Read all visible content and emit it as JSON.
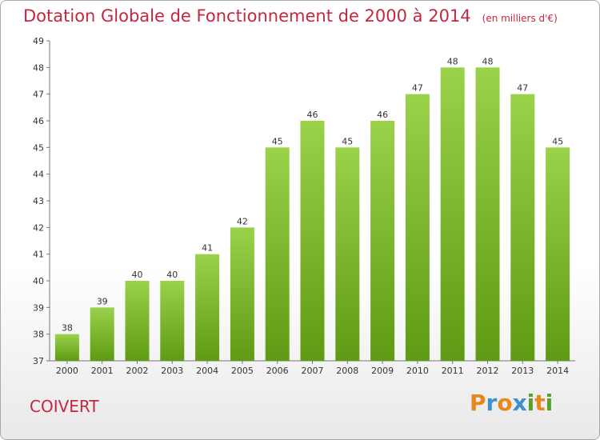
{
  "chart_data": {
    "type": "bar",
    "title": "Dotation Globale de Fonctionnement de 2000 à 2014",
    "subtitle": "(en milliers d'€)",
    "categories": [
      "2000",
      "2001",
      "2002",
      "2003",
      "2004",
      "2005",
      "2006",
      "2007",
      "2008",
      "2009",
      "2010",
      "2011",
      "2012",
      "2013",
      "2014"
    ],
    "values": [
      38,
      39,
      40,
      40,
      41,
      42,
      45,
      46,
      45,
      46,
      47,
      48,
      48,
      47,
      45
    ],
    "ylim": [
      37,
      49
    ],
    "yticks": [
      "37",
      "38",
      "39",
      "40",
      "41",
      "42",
      "43",
      "44",
      "45",
      "46",
      "47",
      "48",
      "49"
    ],
    "grid": false,
    "xlabel": "",
    "ylabel": "",
    "colors": {
      "bar_top": "#9ad24a",
      "bar_bottom": "#5e9a13"
    }
  },
  "footer": {
    "commune": "COIVERT",
    "logo_letters": [
      "P",
      "r",
      "o",
      "x",
      "i",
      "t",
      "i"
    ],
    "logo_colors": [
      "#e8881c",
      "#3d8fd1",
      "#e8881c",
      "#3d8fd1",
      "#5aa02c",
      "#e8881c",
      "#5aa02c"
    ]
  }
}
